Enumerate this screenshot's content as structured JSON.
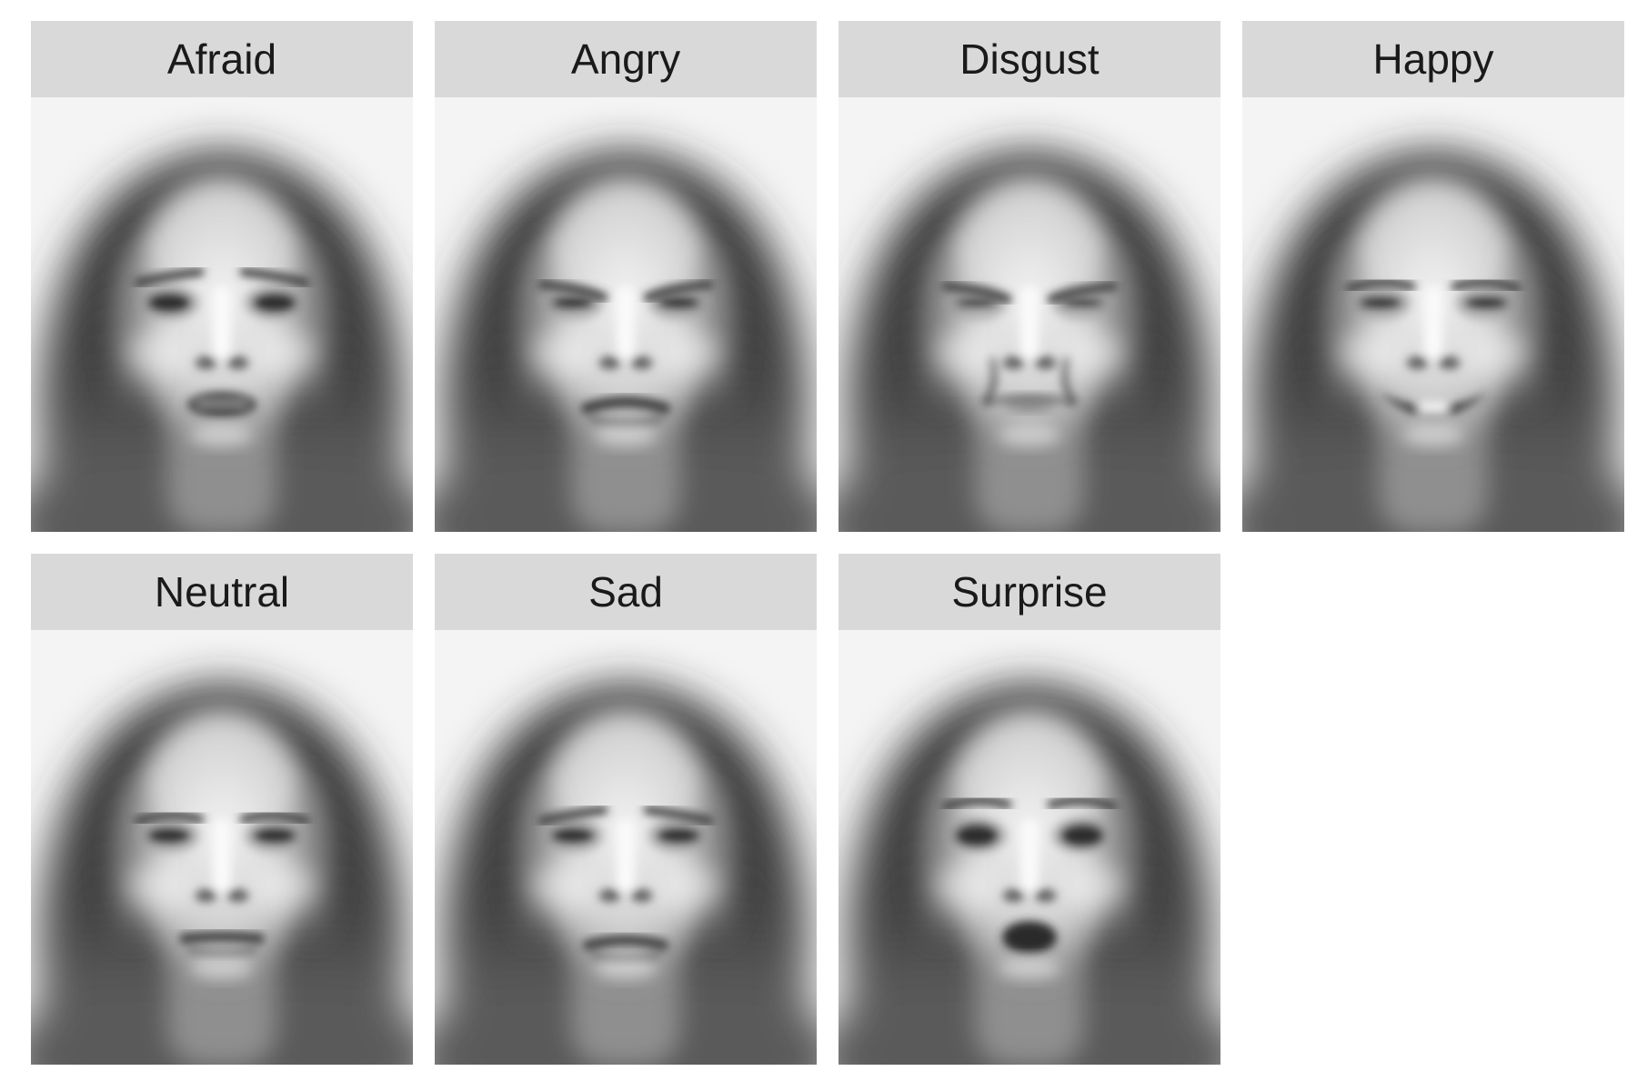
{
  "panels": [
    {
      "label": "Afraid",
      "expression": "afraid"
    },
    {
      "label": "Angry",
      "expression": "angry"
    },
    {
      "label": "Disgust",
      "expression": "disgust"
    },
    {
      "label": "Happy",
      "expression": "happy"
    },
    {
      "label": "Neutral",
      "expression": "neutral"
    },
    {
      "label": "Sad",
      "expression": "sad"
    },
    {
      "label": "Surprise",
      "expression": "surprise"
    }
  ],
  "colors": {
    "strip_background": "#d9d9d9",
    "strip_text": "#1a1a1a",
    "face_background": "#f4f4f4"
  }
}
